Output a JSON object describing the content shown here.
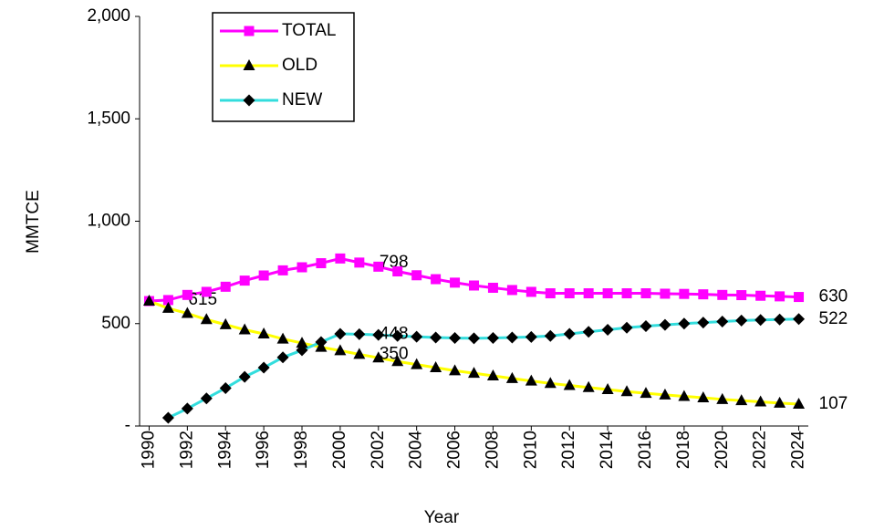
{
  "chart_data": {
    "type": "line",
    "x": [
      1990,
      1991,
      1992,
      1993,
      1994,
      1995,
      1996,
      1997,
      1998,
      1999,
      2000,
      2001,
      2002,
      2003,
      2004,
      2005,
      2006,
      2007,
      2008,
      2009,
      2010,
      2011,
      2012,
      2013,
      2014,
      2015,
      2016,
      2017,
      2018,
      2019,
      2020,
      2021,
      2022,
      2023,
      2024
    ],
    "xlim": [
      1989.5,
      2024.5
    ],
    "xticks": [
      1990,
      1992,
      1994,
      1996,
      1998,
      2000,
      2002,
      2004,
      2006,
      2008,
      2010,
      2012,
      2014,
      2016,
      2018,
      2020,
      2022,
      2024
    ],
    "ylim": [
      0,
      2000
    ],
    "yticks": [
      {
        "value": 0,
        "label": "-"
      },
      {
        "value": 500,
        "label": "500"
      },
      {
        "value": 1000,
        "label": "1,000"
      },
      {
        "value": 1500,
        "label": "1,500"
      },
      {
        "value": 2000,
        "label": "2,000"
      }
    ],
    "xlabel": "Year",
    "ylabel": "MMTCE",
    "legend": "upper left",
    "series": [
      {
        "name": "TOTAL",
        "color": "#ff00ff",
        "marker": "square",
        "marker_color": "#ff00ff",
        "values": [
          610,
          615,
          640,
          655,
          680,
          710,
          735,
          760,
          775,
          795,
          818,
          798,
          778,
          755,
          736,
          717,
          700,
          686,
          675,
          664,
          655,
          648,
          648,
          648,
          648,
          648,
          648,
          646,
          645,
          643,
          640,
          639,
          636,
          633,
          630
        ],
        "value_labels": [
          null,
          "615",
          null,
          null,
          null,
          null,
          null,
          null,
          null,
          null,
          null,
          "798",
          null,
          null,
          null,
          null,
          null,
          null,
          null,
          null,
          null,
          null,
          null,
          null,
          null,
          null,
          null,
          null,
          null,
          null,
          null,
          null,
          null,
          null,
          "630"
        ]
      },
      {
        "name": "OLD",
        "color": "#ffff00",
        "marker": "triangle",
        "marker_color": "#000000",
        "values": [
          610,
          575,
          550,
          520,
          495,
          470,
          450,
          425,
          405,
          385,
          368,
          350,
          333,
          315,
          300,
          285,
          270,
          258,
          245,
          232,
          220,
          208,
          198,
          188,
          178,
          168,
          160,
          152,
          145,
          138,
          130,
          124,
          118,
          112,
          107
        ],
        "value_labels": [
          null,
          null,
          null,
          null,
          null,
          null,
          null,
          null,
          null,
          null,
          null,
          "350",
          null,
          null,
          null,
          null,
          null,
          null,
          null,
          null,
          null,
          null,
          null,
          null,
          null,
          null,
          null,
          null,
          null,
          null,
          null,
          null,
          null,
          null,
          "107"
        ]
      },
      {
        "name": "NEW",
        "color": "#33dddd",
        "marker": "diamond",
        "marker_color": "#000000",
        "values": [
          null,
          40,
          85,
          135,
          185,
          240,
          285,
          335,
          370,
          410,
          450,
          448,
          445,
          440,
          436,
          432,
          430,
          428,
          430,
          432,
          435,
          440,
          450,
          460,
          470,
          480,
          488,
          494,
          500,
          505,
          510,
          515,
          518,
          520,
          522
        ],
        "value_labels": [
          null,
          null,
          null,
          null,
          null,
          null,
          null,
          null,
          null,
          null,
          null,
          "448",
          null,
          null,
          null,
          null,
          null,
          null,
          null,
          null,
          null,
          null,
          null,
          null,
          null,
          null,
          null,
          null,
          null,
          null,
          null,
          null,
          null,
          null,
          "522"
        ]
      }
    ]
  }
}
